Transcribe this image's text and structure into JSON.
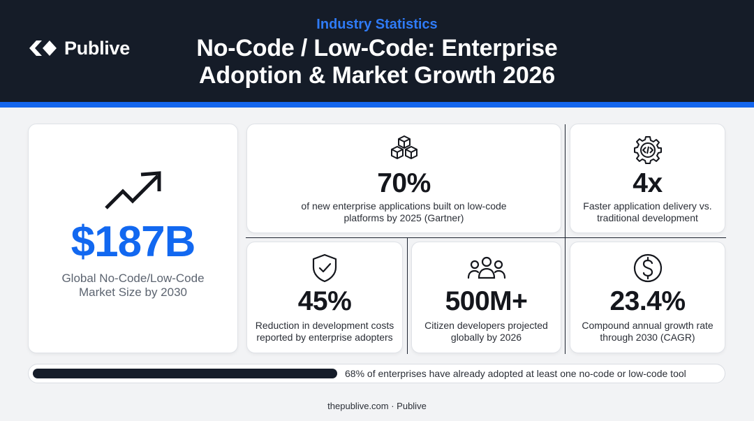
{
  "header": {
    "brand": "Publive",
    "eyebrow": "Industry Statistics",
    "title_line1": "No-Code / Low-Code: Enterprise",
    "title_line2": "Adoption & Market Growth 2026"
  },
  "hero": {
    "icon": "trending-up-icon",
    "value": "$187B",
    "desc_line1": "Global No-Code/Low-Code",
    "desc_line2": "Market Size by 2030"
  },
  "stats": [
    {
      "icon": "cubes-icon",
      "value": "70%",
      "desc_line1": "of new enterprise applications built on low-code",
      "desc_line2": "platforms by 2025 (Gartner)"
    },
    {
      "icon": "gear-code-icon",
      "value": "4x",
      "desc_line1": "Faster application delivery vs.",
      "desc_line2": "traditional development"
    },
    {
      "icon": "shield-check-icon",
      "value": "45%",
      "desc_line1": "Reduction in development costs",
      "desc_line2": "reported by enterprise adopters"
    },
    {
      "icon": "users-icon",
      "value": "500M+",
      "desc_line1": "Citizen developers projected",
      "desc_line2": "globally by 2026"
    },
    {
      "icon": "dollar-icon",
      "value": "23.4%",
      "desc_line1": "Compound annual growth rate",
      "desc_line2": "through 2030 (CAGR)"
    }
  ],
  "adoption": {
    "percent": 68,
    "text": "68% of enterprises have already adopted at least one no-code or low-code tool"
  },
  "footer": "thepublive.com · Publive",
  "colors": {
    "navy": "#151c28",
    "accent": "#1466ee",
    "hero_blue": "#1268f0"
  }
}
